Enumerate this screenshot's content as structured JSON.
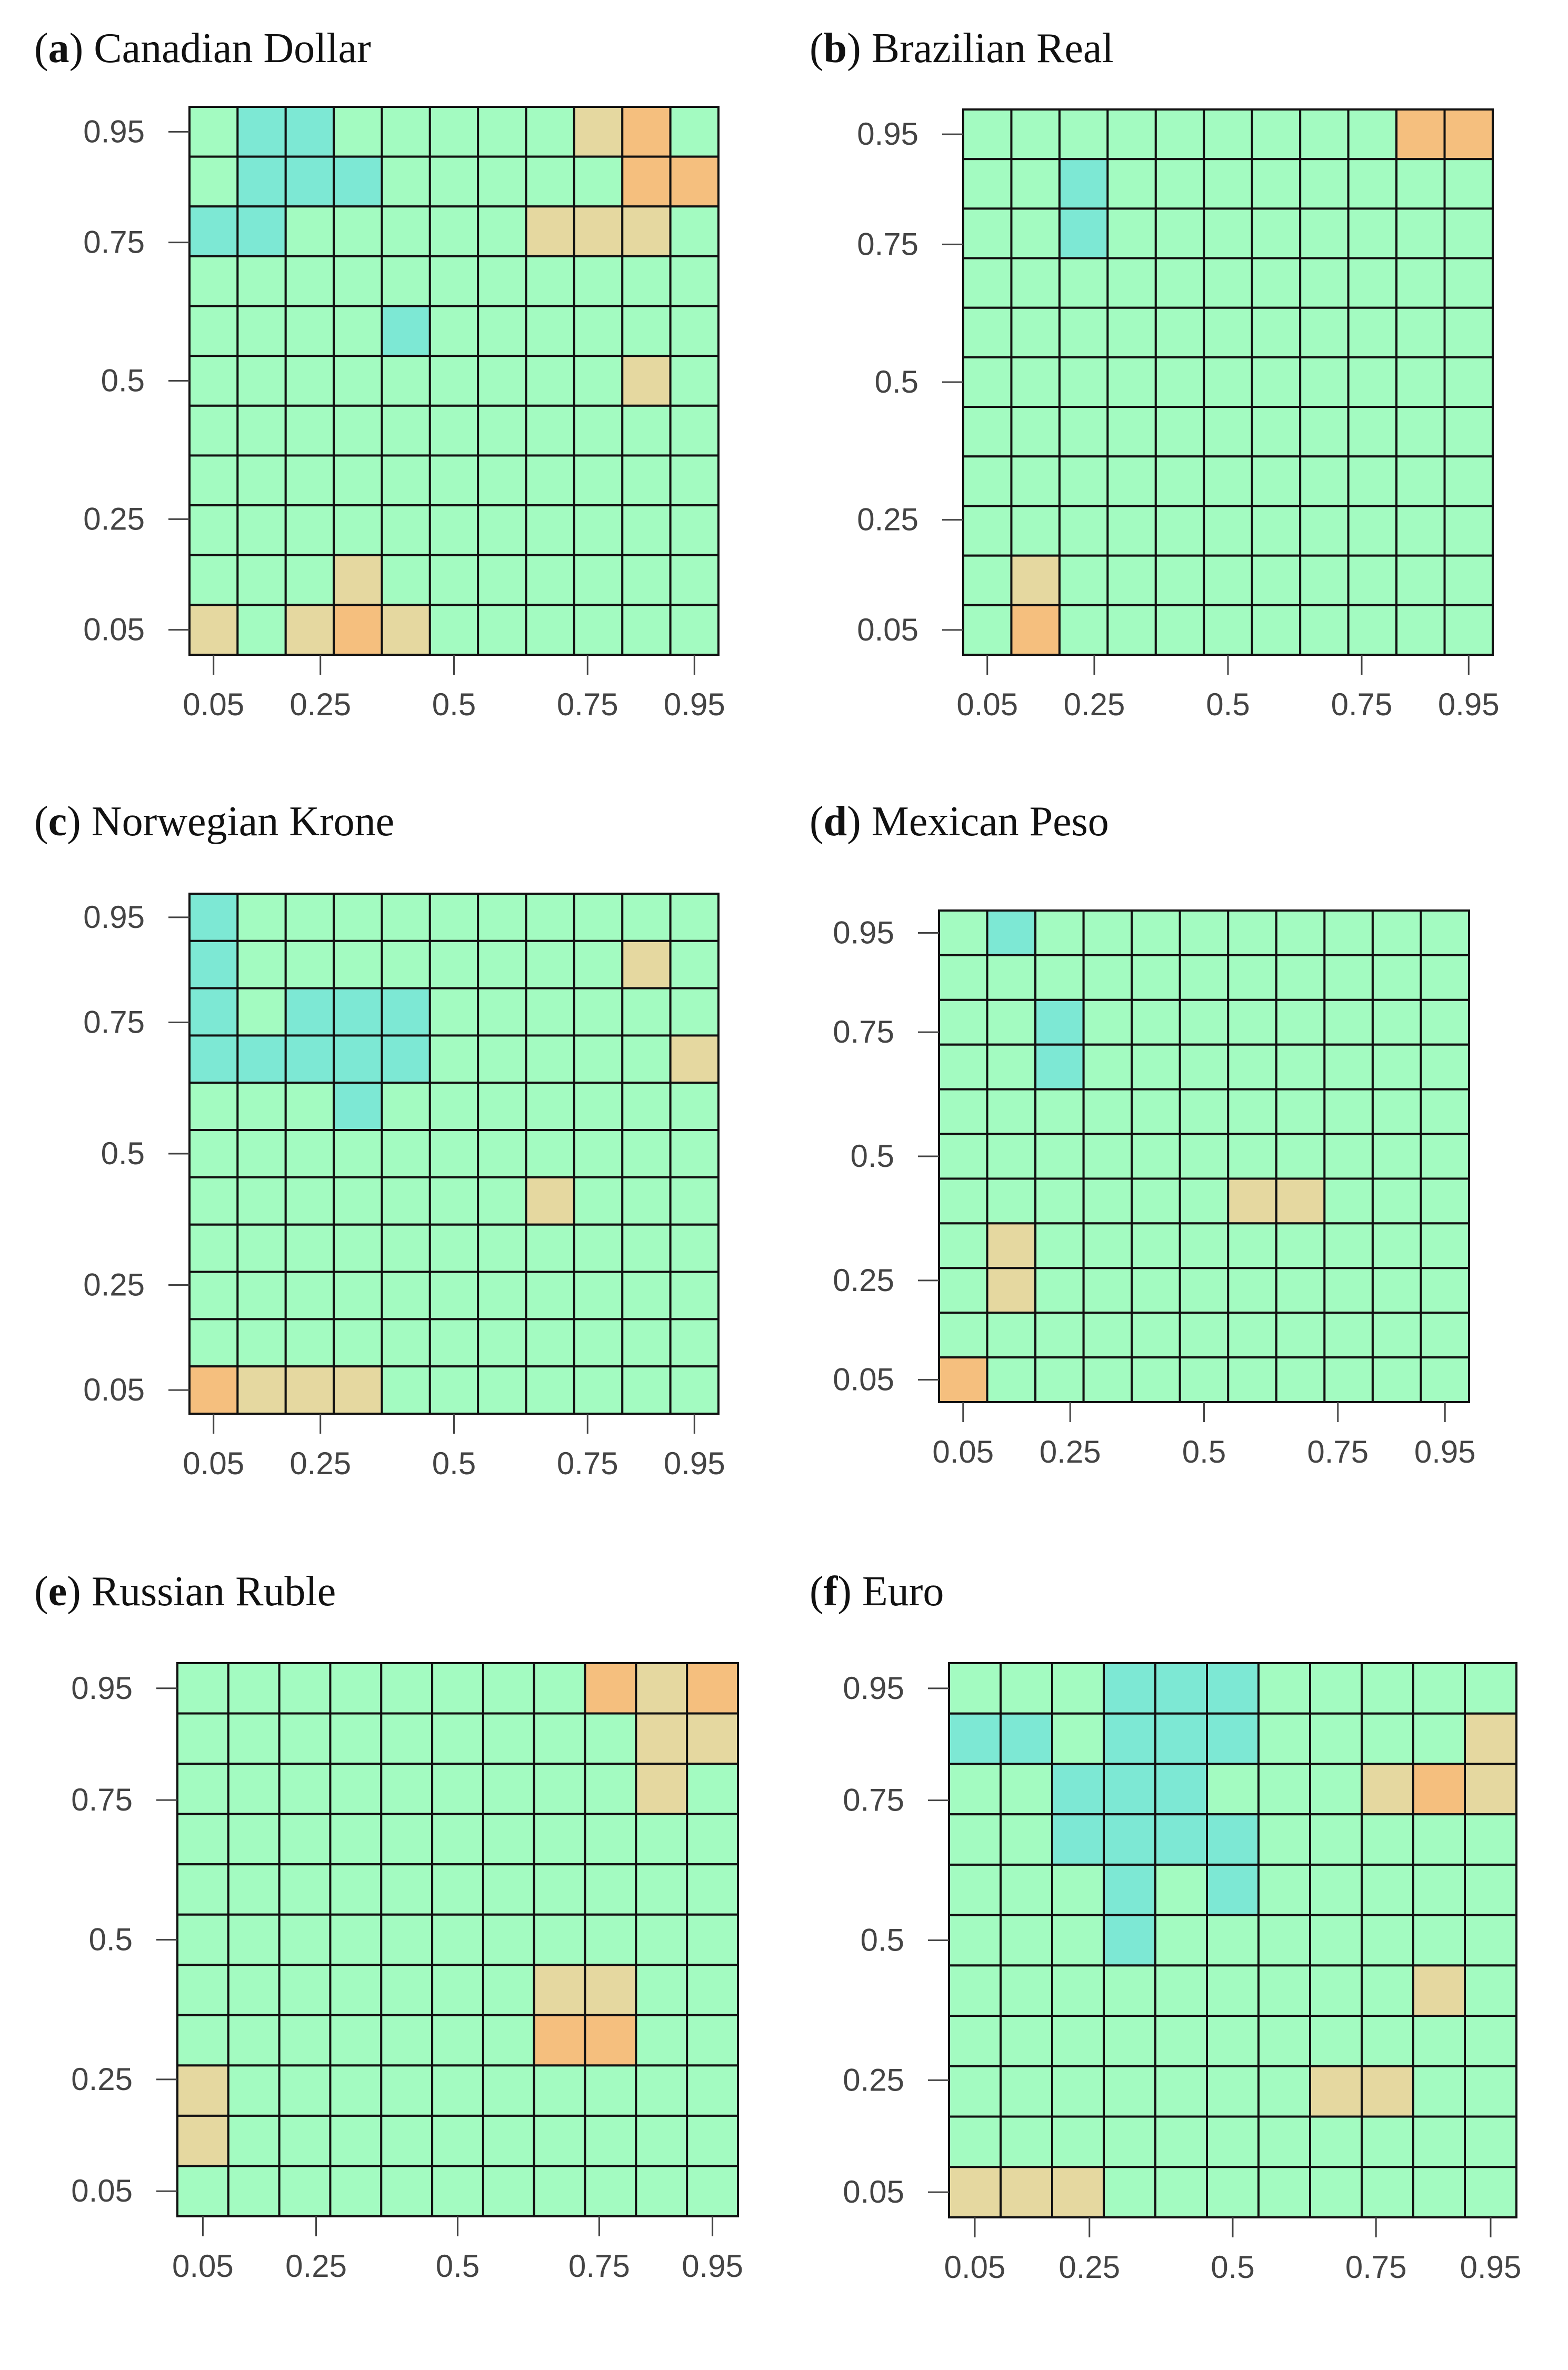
{
  "colors": {
    "neutral": "#a3fbc1",
    "low": "#7de8d4",
    "high_mid": "#e5d8a0",
    "high": "#f5bf7e"
  },
  "chart_data": [
    {
      "type": "heatmap",
      "label": "a",
      "title": "Canadian Dollar",
      "x_ticks": [
        "0.05",
        "0.25",
        "0.5",
        "0.75",
        "0.95"
      ],
      "y_ticks": [
        "0.05",
        "0.25",
        "0.5",
        "0.75",
        "0.95"
      ],
      "rows": 11,
      "cols": 11,
      "cells": [
        [
          0,
          0,
          0,
          0,
          0,
          0,
          0,
          0,
          0,
          0,
          0
        ],
        [
          0,
          0,
          0,
          0,
          0,
          0,
          0,
          0,
          0,
          0,
          0
        ],
        [
          0,
          0,
          0,
          0,
          0,
          0,
          0,
          0,
          0,
          0,
          0
        ],
        [
          0,
          0,
          0,
          0,
          0,
          0,
          0,
          0,
          0,
          0,
          0
        ],
        [
          0,
          0,
          0,
          0,
          0,
          0,
          0,
          0,
          0,
          0,
          0
        ],
        [
          0,
          0,
          0,
          0,
          0,
          0,
          0,
          0,
          0,
          0,
          0
        ],
        [
          0,
          0,
          0,
          0,
          0,
          0,
          0,
          0,
          0,
          0,
          0
        ],
        [
          0,
          0,
          0,
          0,
          0,
          0,
          0,
          0,
          0,
          0,
          0
        ],
        [
          0,
          0,
          0,
          0,
          0,
          0,
          0,
          0,
          0,
          0,
          0
        ],
        [
          0,
          0,
          0,
          0,
          0,
          0,
          0,
          0,
          0,
          0,
          0
        ],
        [
          0,
          0,
          0,
          0,
          0,
          0,
          0,
          0,
          0,
          0,
          0
        ]
      ],
      "low_cells": [
        [
          0,
          1
        ],
        [
          0,
          2
        ],
        [
          1,
          1
        ],
        [
          1,
          2
        ],
        [
          1,
          3
        ],
        [
          2,
          0
        ],
        [
          2,
          1
        ],
        [
          4,
          4
        ]
      ],
      "mid_cells": [
        [
          0,
          8
        ],
        [
          2,
          7
        ],
        [
          2,
          8
        ],
        [
          2,
          9
        ],
        [
          5,
          9
        ],
        [
          9,
          3
        ],
        [
          10,
          0
        ],
        [
          10,
          2
        ],
        [
          10,
          4
        ]
      ],
      "high_cells": [
        [
          0,
          9
        ],
        [
          1,
          9
        ],
        [
          1,
          10
        ],
        [
          10,
          3
        ]
      ]
    },
    {
      "type": "heatmap",
      "label": "b",
      "title": "Brazilian Real",
      "x_ticks": [
        "0.05",
        "0.25",
        "0.5",
        "0.75",
        "0.95"
      ],
      "y_ticks": [
        "0.05",
        "0.25",
        "0.5",
        "0.75",
        "0.95"
      ],
      "rows": 11,
      "cols": 11,
      "low_cells": [
        [
          1,
          2
        ],
        [
          2,
          2
        ]
      ],
      "mid_cells": [
        [
          9,
          1
        ]
      ],
      "high_cells": [
        [
          0,
          9
        ],
        [
          0,
          10
        ],
        [
          10,
          1
        ]
      ]
    },
    {
      "type": "heatmap",
      "label": "c",
      "title": "Norwegian Krone",
      "x_ticks": [
        "0.05",
        "0.25",
        "0.5",
        "0.75",
        "0.95"
      ],
      "y_ticks": [
        "0.05",
        "0.25",
        "0.5",
        "0.75",
        "0.95"
      ],
      "rows": 11,
      "cols": 11,
      "low_cells": [
        [
          0,
          0
        ],
        [
          1,
          0
        ],
        [
          2,
          0
        ],
        [
          2,
          2
        ],
        [
          2,
          3
        ],
        [
          2,
          4
        ],
        [
          3,
          0
        ],
        [
          3,
          1
        ],
        [
          3,
          2
        ],
        [
          3,
          3
        ],
        [
          3,
          4
        ],
        [
          4,
          3
        ]
      ],
      "mid_cells": [
        [
          1,
          9
        ],
        [
          3,
          10
        ],
        [
          6,
          7
        ],
        [
          10,
          1
        ],
        [
          10,
          2
        ],
        [
          10,
          3
        ]
      ],
      "high_cells": [
        [
          10,
          0
        ]
      ]
    },
    {
      "type": "heatmap",
      "label": "d",
      "title": "Mexican Peso",
      "x_ticks": [
        "0.05",
        "0.25",
        "0.5",
        "0.75",
        "0.95"
      ],
      "y_ticks": [
        "0.05",
        "0.25",
        "0.5",
        "0.75",
        "0.95"
      ],
      "rows": 11,
      "cols": 11,
      "low_cells": [
        [
          0,
          1
        ],
        [
          2,
          2
        ],
        [
          3,
          2
        ]
      ],
      "mid_cells": [
        [
          6,
          6
        ],
        [
          6,
          7
        ],
        [
          7,
          1
        ],
        [
          8,
          1
        ]
      ],
      "high_cells": [
        [
          10,
          0
        ]
      ]
    },
    {
      "type": "heatmap",
      "label": "e",
      "title": "Russian Ruble",
      "x_ticks": [
        "0.05",
        "0.25",
        "0.5",
        "0.75",
        "0.95"
      ],
      "y_ticks": [
        "0.05",
        "0.25",
        "0.5",
        "0.75",
        "0.95"
      ],
      "rows": 11,
      "cols": 11,
      "low_cells": [],
      "mid_cells": [
        [
          0,
          9
        ],
        [
          1,
          9
        ],
        [
          1,
          10
        ],
        [
          2,
          9
        ],
        [
          6,
          7
        ],
        [
          6,
          8
        ],
        [
          8,
          0
        ],
        [
          9,
          0
        ]
      ],
      "high_cells": [
        [
          0,
          8
        ],
        [
          0,
          10
        ],
        [
          7,
          7
        ],
        [
          7,
          8
        ]
      ]
    },
    {
      "type": "heatmap",
      "label": "f",
      "title": "Euro",
      "x_ticks": [
        "0.05",
        "0.25",
        "0.5",
        "0.75",
        "0.95"
      ],
      "y_ticks": [
        "0.05",
        "0.25",
        "0.5",
        "0.75",
        "0.95"
      ],
      "rows": 11,
      "cols": 11,
      "low_cells": [
        [
          0,
          3
        ],
        [
          0,
          4
        ],
        [
          0,
          5
        ],
        [
          1,
          0
        ],
        [
          1,
          1
        ],
        [
          1,
          3
        ],
        [
          1,
          4
        ],
        [
          1,
          5
        ],
        [
          2,
          2
        ],
        [
          2,
          3
        ],
        [
          2,
          4
        ],
        [
          3,
          2
        ],
        [
          3,
          3
        ],
        [
          3,
          4
        ],
        [
          3,
          5
        ],
        [
          4,
          3
        ],
        [
          4,
          5
        ],
        [
          5,
          3
        ]
      ],
      "mid_cells": [
        [
          1,
          10
        ],
        [
          2,
          8
        ],
        [
          2,
          10
        ],
        [
          6,
          9
        ],
        [
          8,
          7
        ],
        [
          8,
          8
        ],
        [
          10,
          0
        ],
        [
          10,
          1
        ],
        [
          10,
          2
        ]
      ],
      "high_cells": [
        [
          2,
          9
        ]
      ]
    }
  ]
}
